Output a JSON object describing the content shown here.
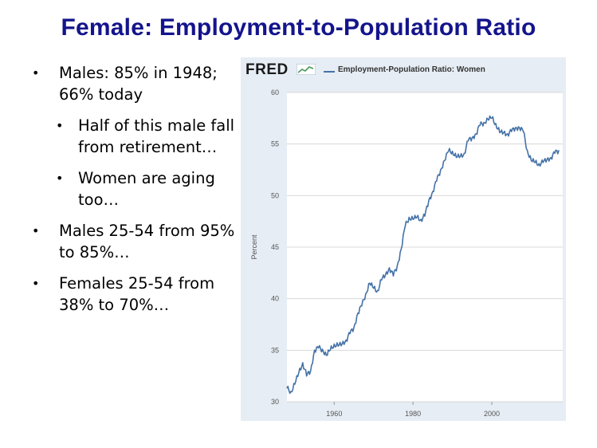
{
  "slide": {
    "title": "Female: Employment-to-Population Ratio",
    "bullets": [
      {
        "level": 1,
        "text": "Males: 85% in 1948;\n66% today"
      },
      {
        "level": 2,
        "text": "Half of this male fall from retirement…"
      },
      {
        "level": 2,
        "text": "Women are aging too…"
      },
      {
        "level": 1,
        "text": "Males 25-54 from 95% to 85%…"
      },
      {
        "level": 1,
        "text": "Females 25-54 from 38% to 70%…"
      }
    ],
    "bullet_glyph": "•"
  },
  "chart_header": {
    "logo": "FRED",
    "logo_icon": "fred-chart-icon",
    "legend": "Employment-Population Ratio: Women",
    "series_color": "#4572a7"
  },
  "chart_data": {
    "type": "line",
    "title": "",
    "xlabel": "",
    "ylabel": "Percent",
    "xlim": [
      1948,
      2018
    ],
    "ylim": [
      30,
      60
    ],
    "xticks": [
      1960,
      1980,
      2000
    ],
    "yticks": [
      30,
      35,
      40,
      45,
      50,
      55,
      60
    ],
    "grid": true,
    "legend_position": "top",
    "series": [
      {
        "name": "Employment-Population Ratio: Women",
        "x": [
          1948,
          1949,
          1950,
          1951,
          1952,
          1953,
          1954,
          1955,
          1956,
          1957,
          1958,
          1959,
          1960,
          1961,
          1962,
          1963,
          1964,
          1965,
          1966,
          1967,
          1968,
          1969,
          1970,
          1971,
          1972,
          1973,
          1974,
          1975,
          1976,
          1977,
          1978,
          1979,
          1980,
          1981,
          1982,
          1983,
          1984,
          1985,
          1986,
          1987,
          1988,
          1989,
          1990,
          1991,
          1992,
          1993,
          1994,
          1995,
          1996,
          1997,
          1998,
          1999,
          2000,
          2001,
          2002,
          2003,
          2004,
          2005,
          2006,
          2007,
          2008,
          2009,
          2010,
          2011,
          2012,
          2013,
          2014,
          2015,
          2016,
          2017
        ],
        "values": [
          31.3,
          31.0,
          31.7,
          32.8,
          33.8,
          32.5,
          33.0,
          35.0,
          35.2,
          35.1,
          34.5,
          35.0,
          35.6,
          35.4,
          35.6,
          36.0,
          36.6,
          37.2,
          38.6,
          39.3,
          40.5,
          41.5,
          41.0,
          40.8,
          41.8,
          42.3,
          43.0,
          42.2,
          43.2,
          44.8,
          47.0,
          47.9,
          47.7,
          47.9,
          47.7,
          48.0,
          49.5,
          50.4,
          51.4,
          52.5,
          53.4,
          54.3,
          54.3,
          53.7,
          53.8,
          54.1,
          55.3,
          55.6,
          56.0,
          56.8,
          57.1,
          57.4,
          57.5,
          57.0,
          56.1,
          56.1,
          56.0,
          56.2,
          56.6,
          56.6,
          56.2,
          54.4,
          53.4,
          53.2,
          53.1,
          53.2,
          53.5,
          53.7,
          54.1,
          54.4
        ]
      }
    ]
  }
}
